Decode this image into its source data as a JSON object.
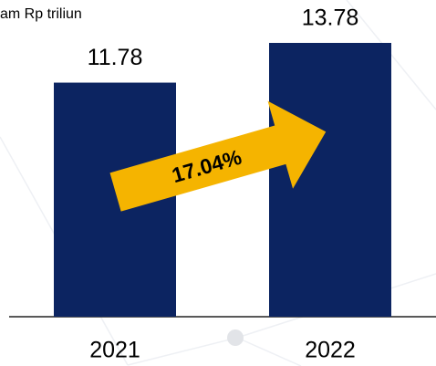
{
  "chart_data": {
    "type": "bar",
    "title": "am Rp triliun",
    "categories": [
      "2021",
      "2022"
    ],
    "values": [
      11.78,
      13.78
    ],
    "color": "#0c2461",
    "annotations": [
      "17.04%"
    ]
  }
}
